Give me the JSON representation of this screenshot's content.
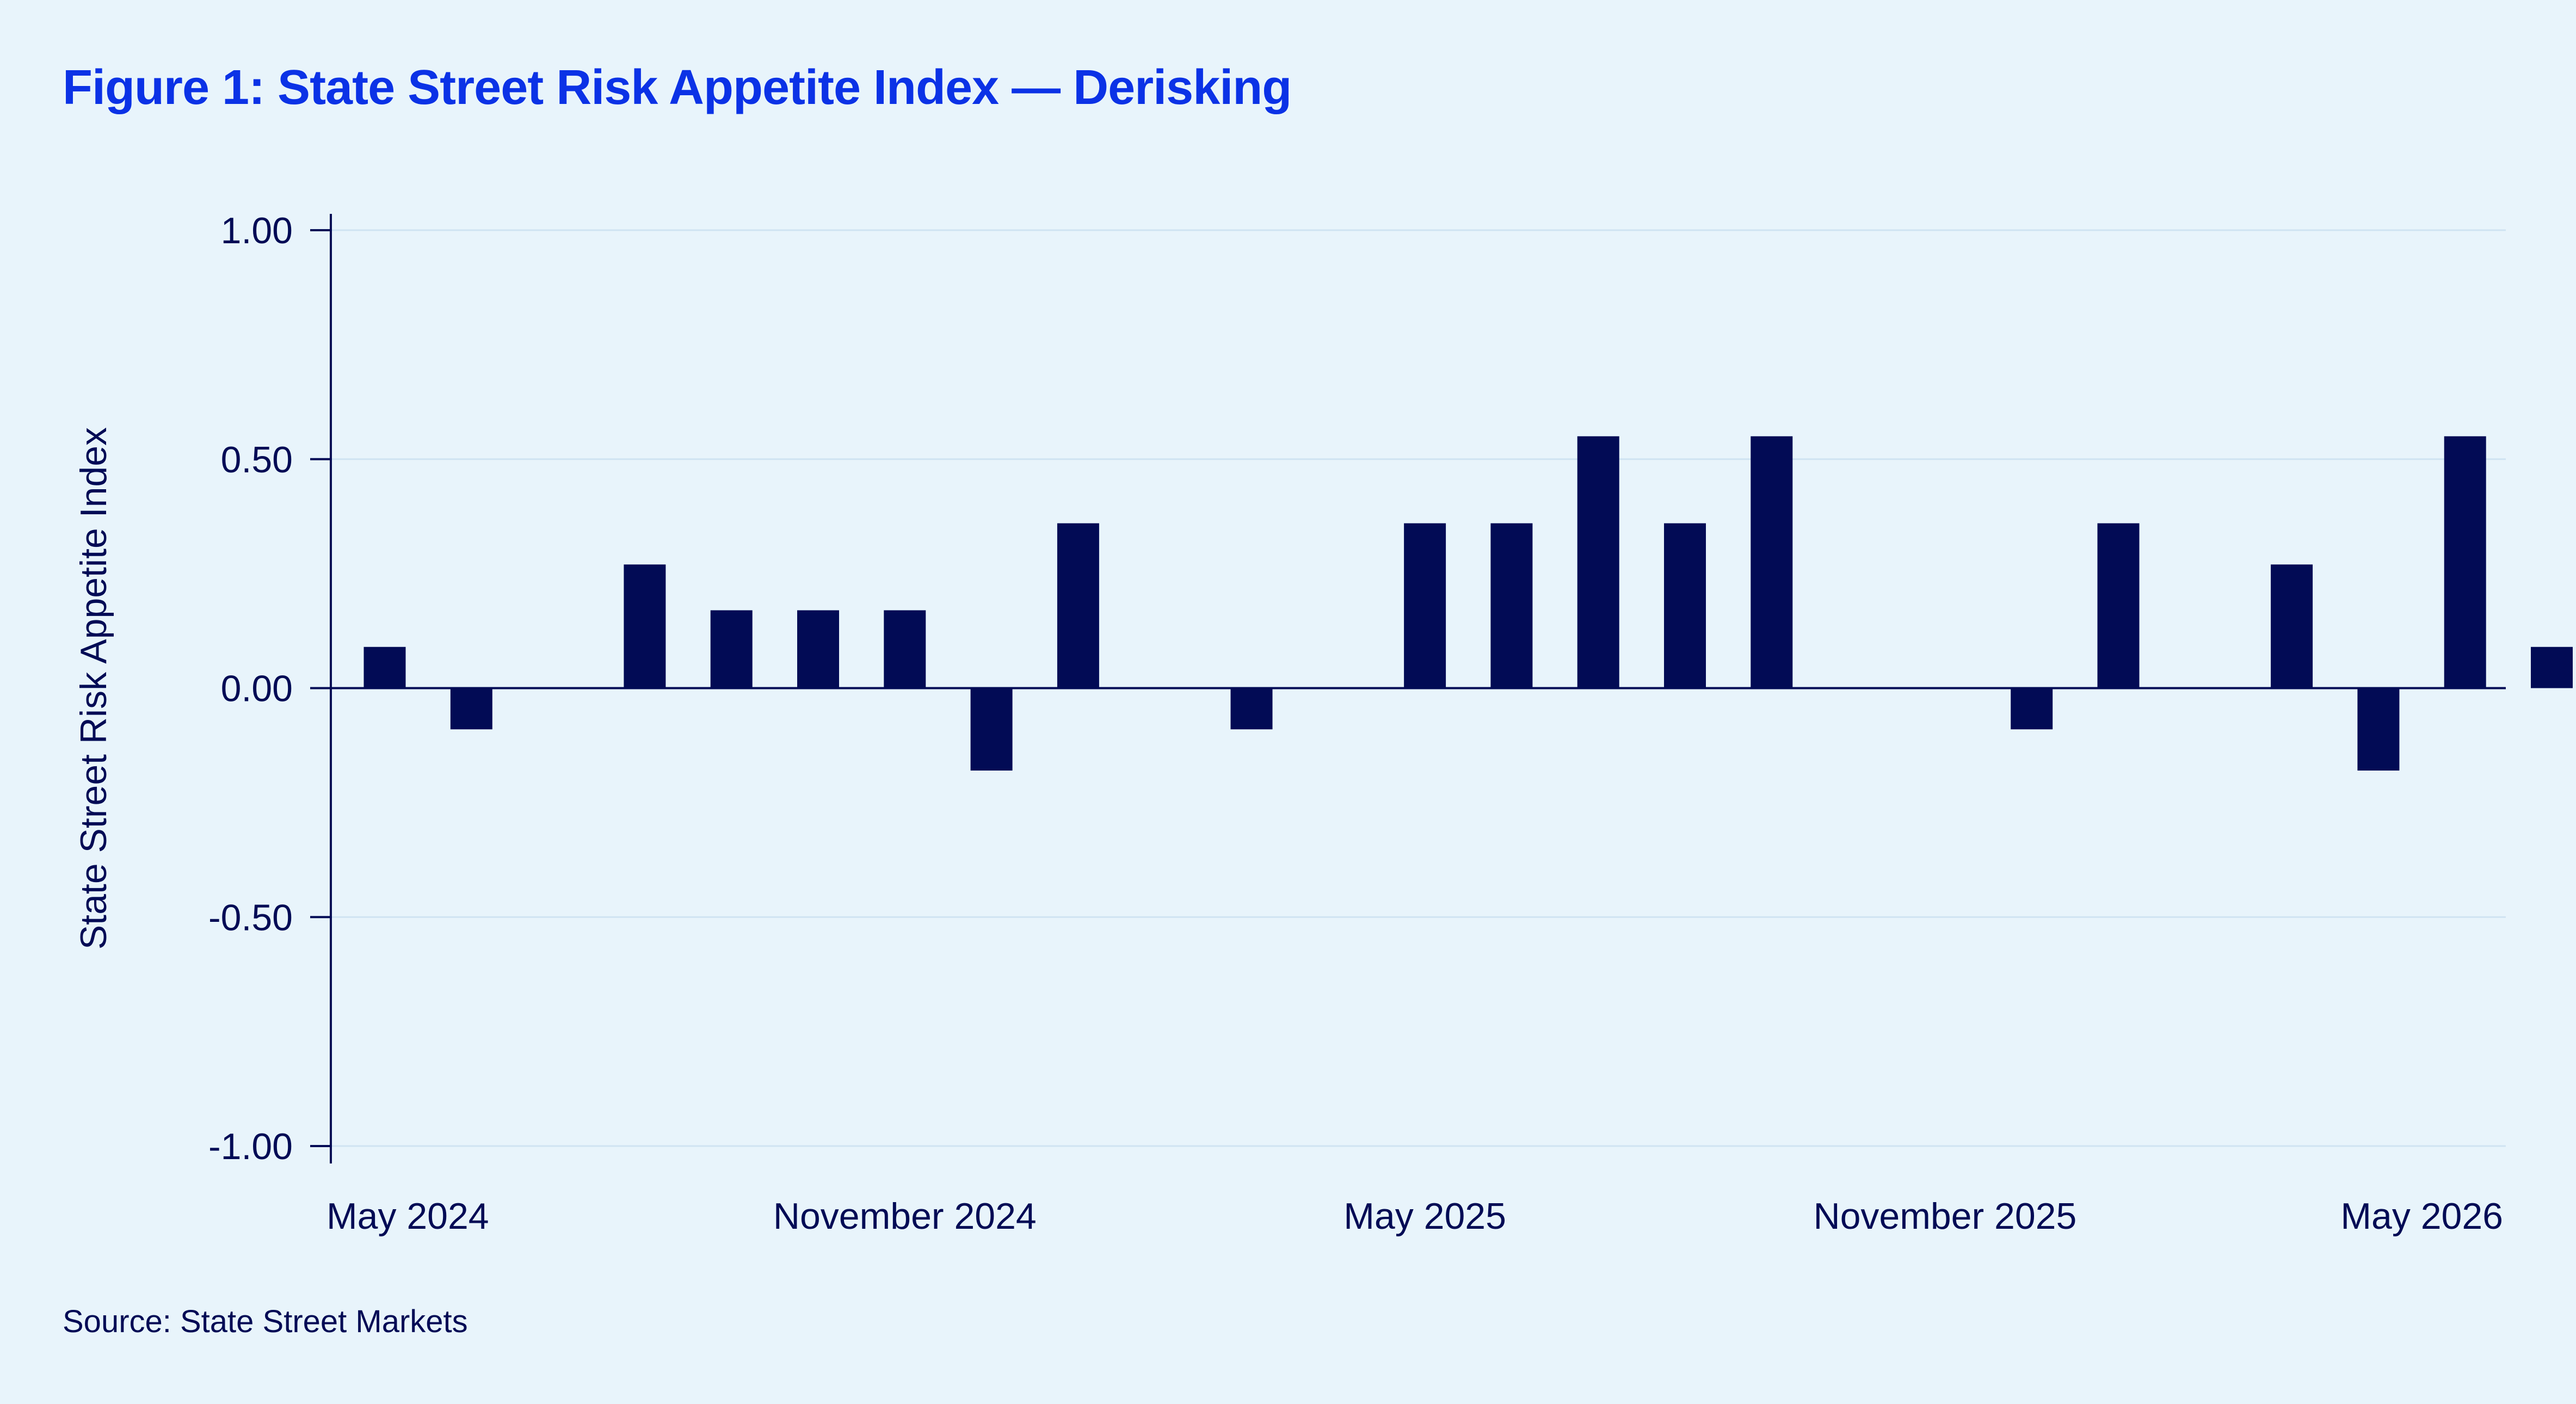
{
  "title": "Figure 1: State Street Risk Appetite Index — Derisking",
  "source": "Source: State Street Markets",
  "colors": {
    "bar": "#020b55",
    "title": "#0b32e6",
    "background": "#e8f4fb",
    "grid": "#cfe3f2"
  },
  "chart_data": {
    "type": "bar",
    "title": "Figure 1: State Street Risk Appetite Index — Derisking",
    "ylabel": "State Street Risk Appetite Index",
    "xlabel": "",
    "ylim": [
      -1.0,
      1.0
    ],
    "yticks": [
      1.0,
      0.5,
      0.0,
      -0.5,
      -1.0
    ],
    "ytick_labels": [
      "1.00",
      "0.50",
      "0.00",
      "-0.50",
      "-1.00"
    ],
    "xtick_labels": [
      "May 2024",
      "November 2024",
      "May 2025",
      "November 2025",
      "May 2026"
    ],
    "xtick_dates": [
      "2024-05",
      "2024-11",
      "2025-05",
      "2025-11",
      "2026-05"
    ],
    "grid": "horizontal",
    "x": [
      "2024-05",
      "2024-06",
      "2024-07",
      "2024-08",
      "2024-09",
      "2024-10",
      "2024-11",
      "2024-12",
      "2025-01",
      "2025-02",
      "2025-03",
      "2025-04",
      "2025-05",
      "2025-06",
      "2025-07",
      "2025-08",
      "2025-09",
      "2025-10",
      "2025-11",
      "2025-12",
      "2026-01",
      "2026-02",
      "2026-03",
      "2026-04",
      "2026-05",
      "2026-06"
    ],
    "values": [
      0.09,
      -0.09,
      0.0,
      0.27,
      0.17,
      0.17,
      0.17,
      -0.18,
      0.36,
      0.0,
      -0.09,
      0.0,
      0.36,
      0.36,
      0.55,
      0.36,
      0.55,
      0.0,
      0.0,
      -0.09,
      0.36,
      0.0,
      0.27,
      -0.18,
      0.55,
      0.09
    ]
  }
}
